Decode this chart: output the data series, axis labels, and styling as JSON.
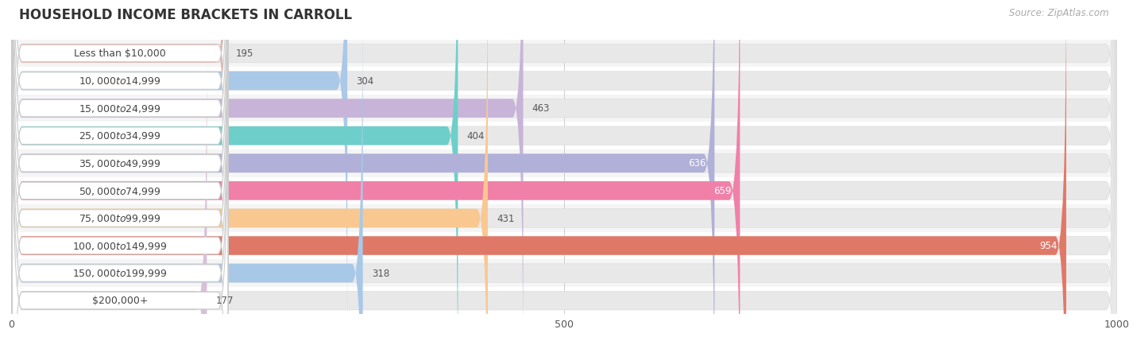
{
  "title": "HOUSEHOLD INCOME BRACKETS IN CARROLL",
  "source": "Source: ZipAtlas.com",
  "categories": [
    "Less than $10,000",
    "$10,000 to $14,999",
    "$15,000 to $24,999",
    "$25,000 to $34,999",
    "$35,000 to $49,999",
    "$50,000 to $74,999",
    "$75,000 to $99,999",
    "$100,000 to $149,999",
    "$150,000 to $199,999",
    "$200,000+"
  ],
  "values": [
    195,
    304,
    463,
    404,
    636,
    659,
    431,
    954,
    318,
    177
  ],
  "bar_colors": [
    "#f4aaa0",
    "#aac8e8",
    "#c8b4d8",
    "#6ecfca",
    "#b0b0d8",
    "#f080a8",
    "#f9c890",
    "#e07868",
    "#a8c8e8",
    "#d8c0d8"
  ],
  "label_colors": [
    "#555555",
    "#555555",
    "#555555",
    "#555555",
    "#ffffff",
    "#ffffff",
    "#555555",
    "#ffffff",
    "#555555",
    "#555555"
  ],
  "xlim": [
    0,
    1000
  ],
  "xticks": [
    0,
    500,
    1000
  ],
  "background_color": "#ffffff",
  "bar_background": "#e8e8e8",
  "row_background_even": "#f5f5f5",
  "row_background_odd": "#ffffff",
  "title_fontsize": 12,
  "label_fontsize": 9,
  "value_fontsize": 8.5,
  "source_fontsize": 8.5
}
